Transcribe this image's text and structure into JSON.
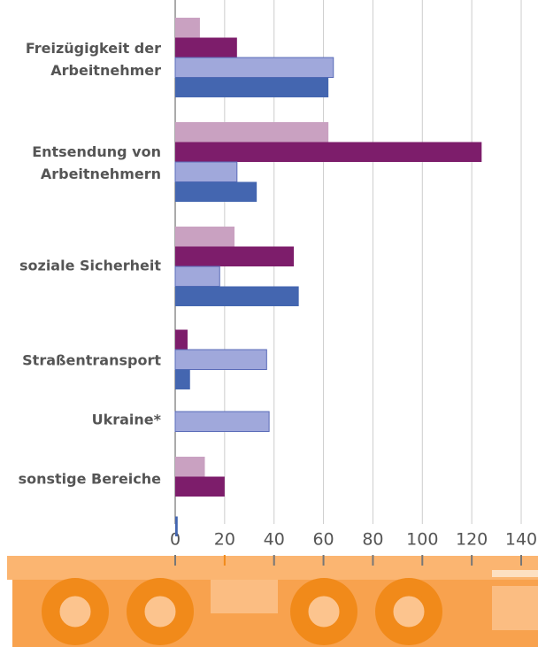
{
  "chart_data": {
    "type": "bar",
    "orientation": "horizontal",
    "categories": [
      "Freizügigkeit der Arbeitnehmer",
      "Entsendung von Arbeitnehmern",
      "soziale Sicherheit",
      "Straßentransport",
      "Ukraine*",
      "sonstige Bereiche"
    ],
    "series": [
      {
        "color": "#c9a1c1",
        "values": [
          10,
          62,
          24,
          null,
          null,
          12
        ]
      },
      {
        "color": "#7d1d6b",
        "values": [
          25,
          124,
          48,
          5,
          null,
          20
        ]
      },
      {
        "color": "#a0a8db",
        "values": [
          64,
          25,
          18,
          37,
          38,
          null
        ]
      },
      {
        "color": "#4466b0",
        "values": [
          62,
          33,
          50,
          6,
          null,
          1
        ]
      }
    ],
    "xlim": [
      0,
      140
    ],
    "xticks": [
      0,
      20,
      40,
      60,
      80,
      100,
      120,
      140
    ],
    "grid": true
  }
}
